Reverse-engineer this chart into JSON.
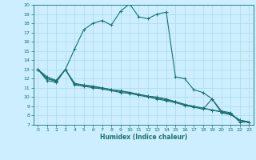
{
  "xlabel": "Humidex (Indice chaleur)",
  "background_color": "#cceeff",
  "grid_color": "#aadddd",
  "line_color": "#1a7070",
  "xlim": [
    -0.5,
    23.5
  ],
  "ylim": [
    7,
    20
  ],
  "xticks": [
    0,
    1,
    2,
    3,
    4,
    5,
    6,
    7,
    8,
    9,
    10,
    11,
    12,
    13,
    14,
    15,
    16,
    17,
    18,
    19,
    20,
    21,
    22,
    23
  ],
  "yticks": [
    7,
    8,
    9,
    10,
    11,
    12,
    13,
    14,
    15,
    16,
    17,
    18,
    19,
    20
  ],
  "line1_x": [
    0,
    1,
    2,
    3,
    4,
    5,
    6,
    7,
    8,
    9,
    10,
    11,
    12,
    13,
    14,
    15,
    16,
    17,
    18,
    19,
    20,
    21,
    22,
    23
  ],
  "line1_y": [
    13.0,
    12.2,
    11.8,
    13.0,
    15.2,
    17.3,
    18.0,
    18.3,
    17.8,
    19.3,
    20.1,
    18.7,
    18.5,
    19.0,
    19.2,
    12.2,
    12.0,
    10.8,
    10.5,
    9.8,
    8.5,
    8.3,
    7.3,
    7.3
  ],
  "line2_x": [
    0,
    1,
    2,
    3,
    4,
    5,
    6,
    7,
    8,
    9,
    10,
    11,
    12,
    13,
    14,
    15,
    16,
    17,
    18,
    19,
    20,
    21,
    22,
    23
  ],
  "line2_y": [
    13.0,
    11.8,
    11.6,
    13.0,
    11.4,
    11.3,
    11.2,
    11.0,
    10.8,
    10.6,
    10.5,
    10.3,
    10.1,
    10.0,
    9.8,
    9.5,
    9.2,
    9.0,
    8.8,
    8.6,
    8.4,
    8.2,
    7.5,
    7.3
  ],
  "line3_x": [
    0,
    1,
    2,
    3,
    4,
    5,
    6,
    7,
    8,
    9,
    10,
    11,
    12,
    13,
    14,
    15,
    16,
    17,
    18,
    19,
    20,
    21,
    22,
    23
  ],
  "line3_y": [
    13.0,
    12.0,
    11.8,
    13.0,
    11.5,
    11.3,
    11.1,
    11.0,
    10.8,
    10.7,
    10.5,
    10.3,
    10.1,
    9.9,
    9.7,
    9.5,
    9.2,
    9.0,
    8.8,
    8.6,
    8.4,
    8.2,
    7.5,
    7.3
  ],
  "line4_x": [
    0,
    1,
    2,
    3,
    4,
    5,
    6,
    7,
    8,
    9,
    10,
    11,
    12,
    13,
    14,
    15,
    16,
    17,
    18,
    19,
    20,
    21,
    22,
    23
  ],
  "line4_y": [
    13.0,
    12.0,
    11.7,
    13.0,
    11.3,
    11.2,
    11.0,
    10.9,
    10.7,
    10.5,
    10.4,
    10.2,
    10.0,
    9.8,
    9.6,
    9.4,
    9.1,
    8.9,
    8.7,
    9.8,
    8.3,
    8.1,
    7.5,
    7.3
  ],
  "marker_size": 3.0,
  "line_width": 0.8
}
